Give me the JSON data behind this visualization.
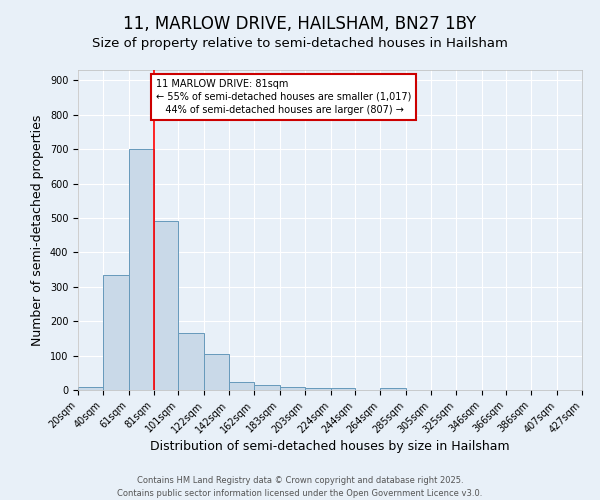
{
  "title1": "11, MARLOW DRIVE, HAILSHAM, BN27 1BY",
  "title2": "Size of property relative to semi-detached houses in Hailsham",
  "xlabel": "Distribution of semi-detached houses by size in Hailsham",
  "ylabel": "Number of semi-detached properties",
  "bar_left_edges": [
    20,
    40,
    61,
    81,
    101,
    122,
    142,
    162,
    183,
    203,
    224,
    244,
    264,
    285,
    305,
    325,
    346,
    366,
    386,
    407
  ],
  "bar_widths": [
    20,
    21,
    20,
    20,
    21,
    20,
    20,
    21,
    20,
    21,
    20,
    20,
    21,
    20,
    20,
    21,
    20,
    20,
    21,
    20
  ],
  "bar_heights": [
    10,
    335,
    700,
    490,
    165,
    105,
    22,
    15,
    8,
    5,
    5,
    0,
    5,
    0,
    0,
    0,
    0,
    0,
    0,
    0
  ],
  "tick_labels": [
    "20sqm",
    "40sqm",
    "61sqm",
    "81sqm",
    "101sqm",
    "122sqm",
    "142sqm",
    "162sqm",
    "183sqm",
    "203sqm",
    "224sqm",
    "244sqm",
    "264sqm",
    "285sqm",
    "305sqm",
    "325sqm",
    "346sqm",
    "366sqm",
    "386sqm",
    "407sqm",
    "427sqm"
  ],
  "bar_color": "#c9d9e8",
  "bar_edge_color": "#6699bb",
  "red_line_x": 81,
  "annotation_line1": "11 MARLOW DRIVE: 81sqm",
  "annotation_line2": "← 55% of semi-detached houses are smaller (1,017)",
  "annotation_line3": "   44% of semi-detached houses are larger (807) →",
  "annotation_box_color": "#ffffff",
  "annotation_box_edge_color": "#cc0000",
  "ylim": [
    0,
    930
  ],
  "yticks": [
    0,
    100,
    200,
    300,
    400,
    500,
    600,
    700,
    800,
    900
  ],
  "background_color": "#e8f0f8",
  "footer_line1": "Contains HM Land Registry data © Crown copyright and database right 2025.",
  "footer_line2": "Contains public sector information licensed under the Open Government Licence v3.0.",
  "grid_color": "#ffffff",
  "title1_fontsize": 12,
  "title2_fontsize": 9.5,
  "tick_fontsize": 7,
  "ylabel_fontsize": 9,
  "xlabel_fontsize": 9,
  "annotation_fontsize": 7,
  "footer_fontsize": 6
}
